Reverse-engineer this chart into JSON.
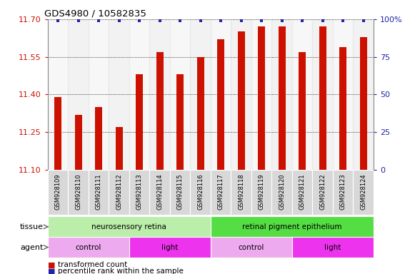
{
  "title": "GDS4980 / 10582835",
  "samples": [
    "GSM928109",
    "GSM928110",
    "GSM928111",
    "GSM928112",
    "GSM928113",
    "GSM928114",
    "GSM928115",
    "GSM928116",
    "GSM928117",
    "GSM928118",
    "GSM928119",
    "GSM928120",
    "GSM928121",
    "GSM928122",
    "GSM928123",
    "GSM928124"
  ],
  "transformed_counts": [
    11.39,
    11.32,
    11.35,
    11.27,
    11.48,
    11.57,
    11.48,
    11.55,
    11.62,
    11.65,
    11.67,
    11.67,
    11.57,
    11.67,
    11.59,
    11.63
  ],
  "percentile_ranks": [
    99,
    99,
    99,
    99,
    99,
    99,
    99,
    99,
    99,
    99,
    99,
    99,
    99,
    99,
    99,
    99
  ],
  "ylim_left": [
    11.1,
    11.7
  ],
  "ylim_right": [
    0,
    100
  ],
  "yticks_left": [
    11.1,
    11.25,
    11.4,
    11.55,
    11.7
  ],
  "yticks_right": [
    0,
    25,
    50,
    75,
    100
  ],
  "bar_color": "#cc1100",
  "dot_color": "#2222aa",
  "tissue_groups": [
    {
      "label": "neurosensory retina",
      "start": 0,
      "end": 7,
      "color": "#bbeeaa"
    },
    {
      "label": "retinal pigment epithelium",
      "start": 8,
      "end": 15,
      "color": "#55dd44"
    }
  ],
  "agent_groups": [
    {
      "label": "control",
      "start": 0,
      "end": 3,
      "color": "#eeaaee"
    },
    {
      "label": "light",
      "start": 4,
      "end": 7,
      "color": "#ee33ee"
    },
    {
      "label": "control",
      "start": 8,
      "end": 11,
      "color": "#eeaaee"
    },
    {
      "label": "light",
      "start": 12,
      "end": 15,
      "color": "#ee33ee"
    }
  ],
  "legend_items": [
    {
      "label": "transformed count",
      "color": "#cc1100"
    },
    {
      "label": "percentile rank within the sample",
      "color": "#2222aa"
    }
  ],
  "tissue_label": "tissue",
  "agent_label": "agent",
  "left_axis_color": "#cc1100",
  "right_axis_color": "#2222aa",
  "bar_bottom": 11.1,
  "bar_width": 0.35
}
